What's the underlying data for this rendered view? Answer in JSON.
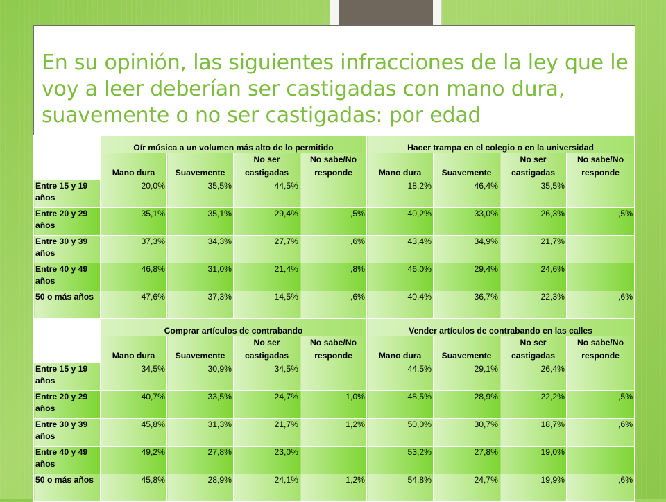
{
  "title": "En su opinión, las siguientes infracciones de la ley que le voy a leer deberían ser castigadas con mano dura, suavemente o no ser castigadas: por edad",
  "columns": [
    "Mano dura",
    "Suavemente",
    "No ser castigadas",
    "No sabe/No responde"
  ],
  "blocks": [
    {
      "groups": [
        "Oír música a un volumen más alto de lo permitido",
        "Hacer trampa en el colegio o en la universidad"
      ],
      "rows": [
        {
          "label": "Entre 15 y 19 años",
          "values": [
            "20,0%",
            "35,5%",
            "44,5%",
            "",
            "18,2%",
            "46,4%",
            "35,5%",
            ""
          ]
        },
        {
          "label": "Entre 20 y 29 años",
          "values": [
            "35,1%",
            "35,1%",
            "29,4%",
            ",5%",
            "40,2%",
            "33,0%",
            "26,3%",
            ",5%"
          ]
        },
        {
          "label": "Entre 30 y 39 años",
          "values": [
            "37,3%",
            "34,3%",
            "27,7%",
            ",6%",
            "43,4%",
            "34,9%",
            "21,7%",
            ""
          ]
        },
        {
          "label": "Entre 40 y 49 años",
          "values": [
            "46,8%",
            "31,0%",
            "21,4%",
            ",8%",
            "46,0%",
            "29,4%",
            "24,6%",
            ""
          ]
        },
        {
          "label": "50 o más años",
          "values": [
            "47,6%",
            "37,3%",
            "14,5%",
            ",6%",
            "40,4%",
            "36,7%",
            "22,3%",
            ",6%"
          ]
        }
      ]
    },
    {
      "groups": [
        "Comprar artículos de contrabando",
        "Vender artículos de contrabando en las calles"
      ],
      "rows": [
        {
          "label": "Entre 15 y 19 años",
          "values": [
            "34,5%",
            "30,9%",
            "34,5%",
            "",
            "44,5%",
            "29,1%",
            "26,4%",
            ""
          ]
        },
        {
          "label": "Entre 20 y 29 años",
          "values": [
            "40,7%",
            "33,5%",
            "24,7%",
            "1,0%",
            "48,5%",
            "28,9%",
            "22,2%",
            ",5%"
          ]
        },
        {
          "label": "Entre 30 y 39 años",
          "values": [
            "45,8%",
            "31,3%",
            "21,7%",
            "1,2%",
            "50,0%",
            "30,7%",
            "18,7%",
            ",6%"
          ]
        },
        {
          "label": "Entre 40 y 49 años",
          "values": [
            "49,2%",
            "27,8%",
            "23,0%",
            "",
            "53,2%",
            "27,8%",
            "19,0%",
            ""
          ]
        },
        {
          "label": "50 o más años",
          "values": [
            "45,8%",
            "28,9%",
            "24,1%",
            "1,2%",
            "54,8%",
            "24,7%",
            "19,9%",
            ",6%"
          ]
        }
      ]
    }
  ]
}
